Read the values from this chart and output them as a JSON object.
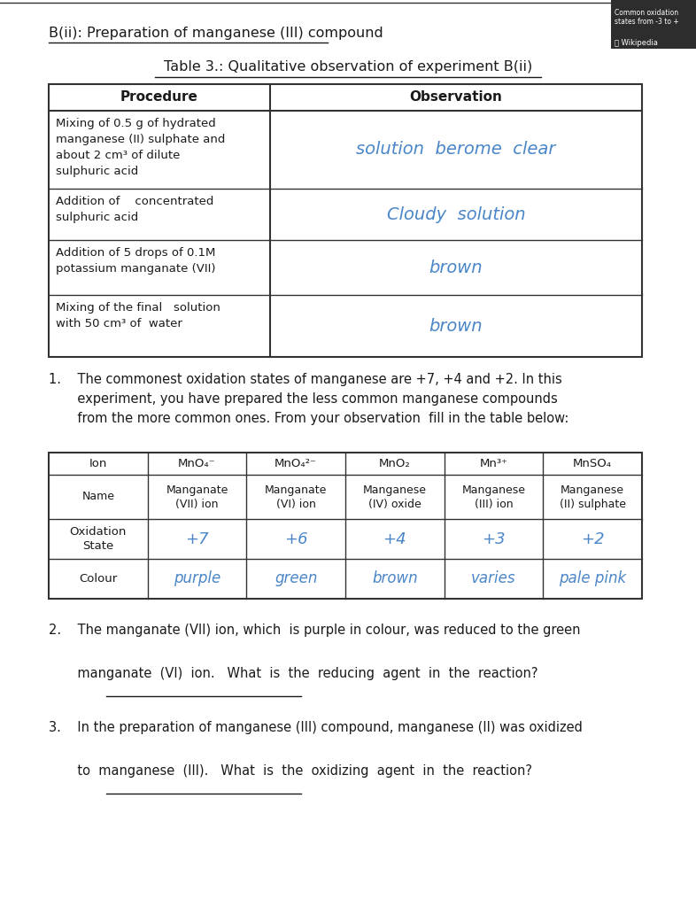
{
  "bg_color": "#ffffff",
  "title_b": "B(ii): Preparation of manganese (III) compound",
  "title_table": "Table 3.: Qualitative observation of experiment B(ii)",
  "table1_headers": [
    "Procedure",
    "Observation"
  ],
  "table1_rows": [
    [
      "Mixing of 0.5 g of hydrated\nmanganese (II) sulphate and\nabout 2 cm³ of dilute\nsulphuric acid",
      "solution  berome  clear"
    ],
    [
      "Addition of    concentrated\nsulphuric acid",
      "Cloudy  solution"
    ],
    [
      "Addition of 5 drops of 0.1M\npotassium manganate (VII)",
      "brown"
    ],
    [
      "Mixing of the final   solution\nwith 50 cm³ of  water",
      "brown"
    ]
  ],
  "question1": "1.    The commonest oxidation states of manganese are +7, +4 and +2. In this\n       experiment, you have prepared the less common manganese compounds\n       from the more common ones. From your observation  fill in the table below:",
  "table2_col_headers": [
    "Ion",
    "MnO₄⁻",
    "MnO₄²⁻",
    "MnO₂",
    "Mn³⁺",
    "MnSO₄"
  ],
  "table2_name_row": [
    "Name",
    "Manganate\n(VII) ion",
    "Manganate\n(VI) ion",
    "Manganese\n(IV) oxide",
    "Manganese\n(III) ion",
    "Manganese\n(II) sulphate"
  ],
  "table2_ox_row": [
    "Oxidation\nState",
    "+7",
    "+6",
    "+4",
    "+3",
    "+2"
  ],
  "table2_colour_row": [
    "Colour",
    "purple",
    "green",
    "brown",
    "varies",
    "pale pink"
  ],
  "question2": "2.    The manganate (VII) ion, which  is purple in colour, was reduced to the green\n\n       manganate  (VI)  ion.   What  is  the  reducing  agent  in  the  reaction?",
  "question3": "3.    In the preparation of manganese (III) compound, manganese (II) was oxidized\n\n       to  manganese  (III).   What  is  the  oxidizing  agent  in  the  reaction?",
  "handwritten_color": "#4a86c8",
  "text_color": "#1a1a1a",
  "line_color": "#333333",
  "corner_box_bg": "#2d2d2d",
  "corner_box_text1": "Common oxidation\nstates from -3 to +",
  "corner_box_text2": "Ⓢ Wikipedia"
}
